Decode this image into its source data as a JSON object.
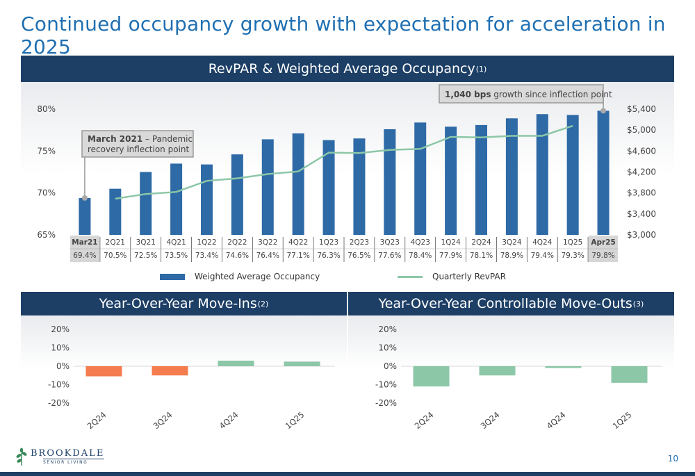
{
  "slide": {
    "title": "Continued occupancy growth with expectation for acceleration in 2025",
    "page_number": "10"
  },
  "logo": {
    "name": "BROOKDALE",
    "sub": "SENIOR LIVING"
  },
  "colors": {
    "band": "#1d3f66",
    "title": "#1f6fb2",
    "occupancy_bar": "#2e6aa6",
    "revpar_line": "#8cc7a8",
    "negative_bar": "#f47c4e",
    "positive_bar": "#8cc7a8"
  },
  "chart_data": [
    {
      "type": "bar",
      "title": "RevPAR & Weighted Average Occupancy",
      "title_footnote": "(1)",
      "categories": [
        "Mar21",
        "2Q21",
        "3Q21",
        "4Q21",
        "1Q22",
        "2Q22",
        "3Q22",
        "4Q22",
        "1Q23",
        "2Q23",
        "3Q23",
        "4Q23",
        "1Q24",
        "2Q24",
        "3Q24",
        "4Q24",
        "1Q25",
        "Apr25"
      ],
      "series": [
        {
          "name": "Weighted Average Occupancy",
          "axis": "left",
          "values": [
            69.4,
            70.5,
            72.5,
            73.5,
            73.4,
            74.6,
            76.4,
            77.1,
            76.3,
            76.5,
            77.6,
            78.4,
            77.9,
            78.1,
            78.9,
            79.4,
            79.3,
            79.8
          ],
          "labels": [
            "69.4%",
            "70.5%",
            "72.5%",
            "73.5%",
            "73.4%",
            "74.6%",
            "76.4%",
            "77.1%",
            "76.3%",
            "76.5%",
            "77.6%",
            "78.4%",
            "77.9%",
            "78.1%",
            "78.9%",
            "79.4%",
            "79.3%",
            "79.8%"
          ]
        },
        {
          "name": "Quarterly RevPAR",
          "axis": "right",
          "type": "line",
          "values": [
            null,
            3690,
            3780,
            3820,
            4030,
            4080,
            4160,
            4210,
            4570,
            4560,
            4620,
            4640,
            4870,
            4860,
            4890,
            4890,
            5080,
            null
          ]
        }
      ],
      "ylim_left": [
        65,
        80
      ],
      "yticks_left": [
        "65%",
        "70%",
        "75%",
        "80%"
      ],
      "ylim_right": [
        3000,
        5400
      ],
      "yticks_right": [
        "$3,000",
        "$3,400",
        "$3,800",
        "$4,200",
        "$4,600",
        "$5,000",
        "$5,400"
      ],
      "highlighted_categories": [
        "Mar21",
        "Apr25"
      ],
      "annotations": [
        {
          "bold": "March 2021",
          "text": " – Pandemic",
          "text2": "recovery inflection point",
          "target": "Mar21"
        },
        {
          "bold": "1,040 bps",
          "text": " growth since inflection point",
          "target": "Apr25"
        }
      ],
      "legend": "bottom"
    },
    {
      "type": "bar",
      "title": "Year-Over-Year Move-Ins",
      "title_footnote": "(2)",
      "categories": [
        "2Q24",
        "3Q24",
        "4Q24",
        "1Q25"
      ],
      "values": [
        -5.5,
        -5.0,
        3.0,
        2.5
      ],
      "ylim": [
        -20,
        20
      ],
      "yticks": [
        "20%",
        "10%",
        "0%",
        "-10%",
        "-20%"
      ]
    },
    {
      "type": "bar",
      "title": "Year-Over-Year Controllable Move-Outs",
      "title_footnote": "(3)",
      "categories": [
        "2Q24",
        "3Q24",
        "4Q24",
        "1Q25"
      ],
      "values": [
        -11.0,
        -5.0,
        -1.0,
        -9.0
      ],
      "ylim": [
        -20,
        20
      ],
      "yticks": [
        "20%",
        "10%",
        "0%",
        "-10%",
        "-20%"
      ]
    }
  ]
}
